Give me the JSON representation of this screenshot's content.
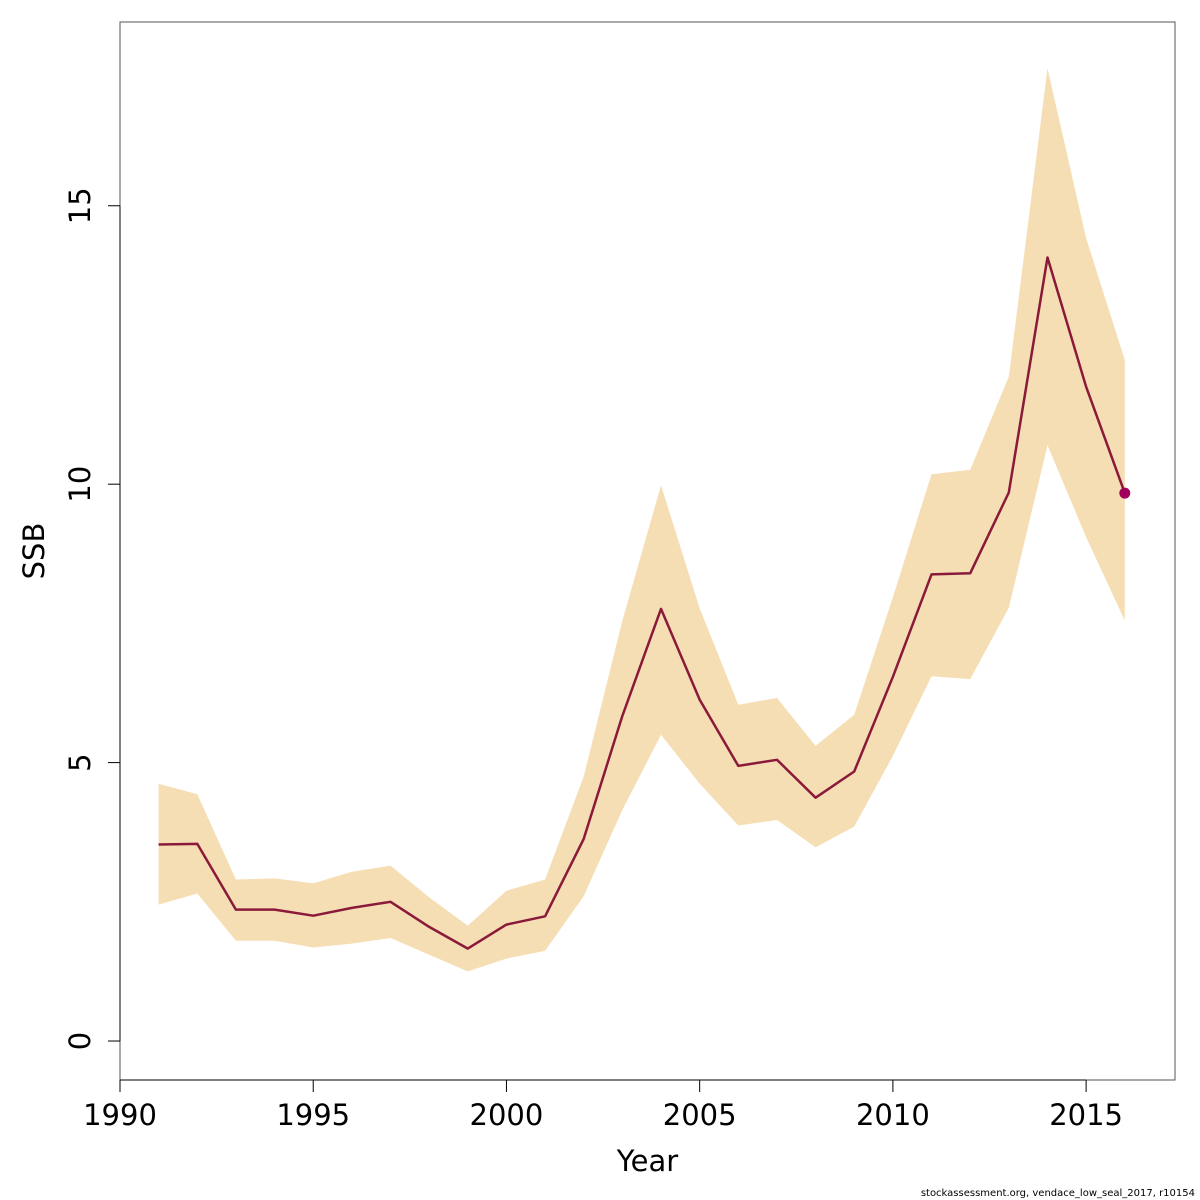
{
  "chart_data": {
    "type": "line",
    "xlabel": "Year",
    "ylabel": "SSB",
    "xlim": [
      1990,
      2017.3
    ],
    "ylim": [
      -0.7,
      18.3
    ],
    "x_ticks": [
      1990,
      1995,
      2000,
      2005,
      2010,
      2015
    ],
    "y_ticks": [
      0,
      5,
      10,
      15
    ],
    "grid": false,
    "legend": "none",
    "colors": {
      "band": "#f5deb3",
      "line": "#8b1a3a",
      "last_point": "#a0005a"
    },
    "series": [
      {
        "x": [
          1991,
          1992,
          1993,
          1994,
          1995,
          1996,
          1997,
          1998,
          1999,
          2000,
          2001,
          2002,
          2003,
          2004,
          2005,
          2006,
          2007,
          2008,
          2009,
          2010,
          2011,
          2012,
          2013,
          2014,
          2015,
          2016
        ],
        "values": [
          3.53,
          3.54,
          2.36,
          2.36,
          2.25,
          2.39,
          2.5,
          2.05,
          1.66,
          2.09,
          2.24,
          3.63,
          5.84,
          7.76,
          6.13,
          4.94,
          5.05,
          4.37,
          4.84,
          6.54,
          8.38,
          8.4,
          9.85,
          14.07,
          11.75,
          9.84
        ],
        "lower": [
          2.45,
          2.65,
          1.8,
          1.8,
          1.68,
          1.75,
          1.85,
          1.55,
          1.25,
          1.48,
          1.62,
          2.6,
          4.15,
          5.5,
          4.62,
          3.87,
          3.97,
          3.48,
          3.85,
          5.12,
          6.55,
          6.5,
          7.78,
          10.7,
          9.05,
          7.55
        ],
        "upper": [
          4.62,
          4.43,
          2.9,
          2.92,
          2.83,
          3.04,
          3.15,
          2.58,
          2.07,
          2.7,
          2.9,
          4.75,
          7.55,
          9.98,
          7.77,
          6.04,
          6.16,
          5.3,
          5.86,
          7.97,
          10.18,
          10.26,
          11.93,
          17.47,
          14.42,
          12.23
        ]
      }
    ],
    "footer": "stockassessment.org, vendace_low_seal_2017, r10154"
  }
}
